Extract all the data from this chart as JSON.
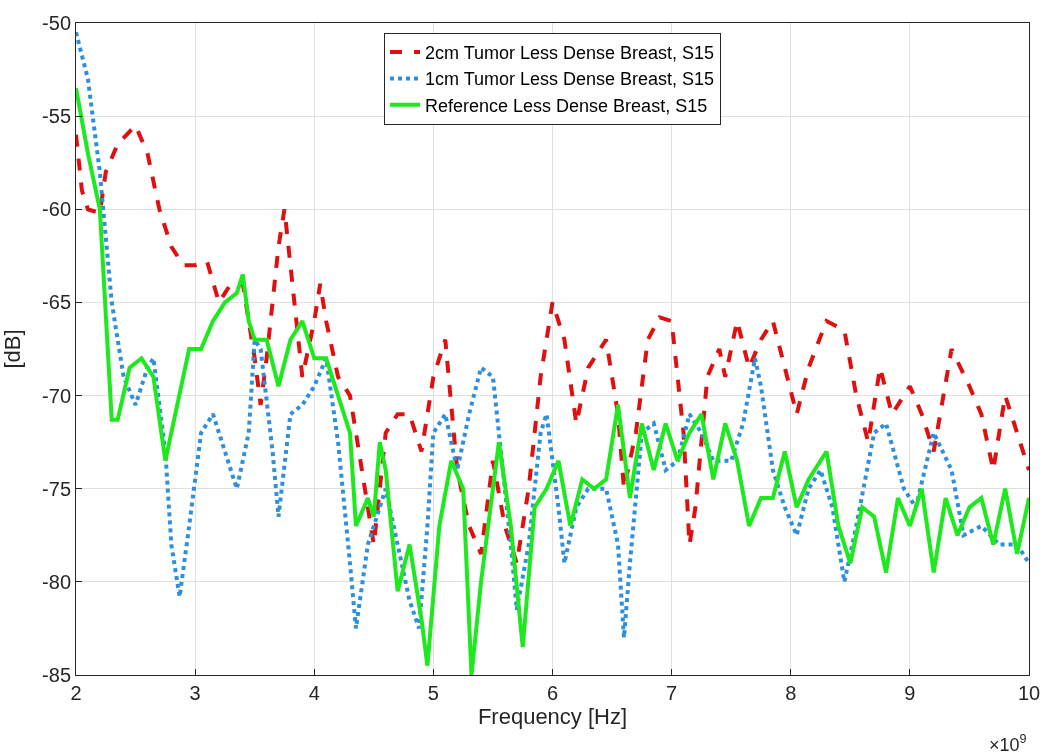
{
  "chart_data": {
    "type": "line",
    "xlabel": "Frequency [Hz]",
    "ylabel": "[dB]",
    "xlim": [
      2,
      10
    ],
    "xticks": [
      2,
      3,
      4,
      5,
      6,
      7,
      8,
      9,
      10
    ],
    "ylim": [
      -85,
      -50
    ],
    "yticks": [
      -85,
      -80,
      -75,
      -70,
      -65,
      -60,
      -55,
      -50
    ],
    "grid": true,
    "legend": "top",
    "marker": "none",
    "annotations": [
      "×10$^{9}$"
    ],
    "series": [
      {
        "name": "2cm Tumor Less Dense Breast, S15",
        "color": "#e01010",
        "line_style": "dashed",
        "x": [
          2.0,
          2.05,
          2.1,
          2.2,
          2.25,
          2.35,
          2.5,
          2.6,
          2.7,
          2.8,
          2.9,
          3.0,
          3.1,
          3.2,
          3.3,
          3.4,
          3.5,
          3.55,
          3.6,
          3.7,
          3.75,
          3.8,
          3.9,
          4.0,
          4.05,
          4.1,
          4.2,
          4.3,
          4.4,
          4.5,
          4.55,
          4.6,
          4.7,
          4.8,
          4.9,
          5.0,
          5.1,
          5.2,
          5.3,
          5.4,
          5.45,
          5.5,
          5.6,
          5.7,
          5.8,
          5.9,
          6.0,
          6.1,
          6.2,
          6.3,
          6.45,
          6.55,
          6.6,
          6.7,
          6.8,
          6.9,
          7.0,
          7.1,
          7.15,
          7.2,
          7.3,
          7.4,
          7.45,
          7.55,
          7.65,
          7.75,
          7.85,
          7.95,
          8.05,
          8.15,
          8.3,
          8.45,
          8.55,
          8.65,
          8.75,
          8.85,
          9.0,
          9.1,
          9.2,
          9.35,
          9.5,
          9.6,
          9.7,
          9.8,
          9.9,
          10.0
        ],
        "values": [
          -56,
          -59,
          -60,
          -60.2,
          -58,
          -56.5,
          -55.5,
          -57,
          -60,
          -62,
          -63,
          -63,
          -62.8,
          -65,
          -64,
          -64,
          -68,
          -70.5,
          -68,
          -62,
          -60,
          -63,
          -69,
          -66,
          -64,
          -66,
          -69,
          -70,
          -74,
          -78,
          -75,
          -72,
          -71,
          -71,
          -73,
          -69,
          -67,
          -74,
          -77,
          -78.5,
          -76,
          -73.5,
          -77,
          -79,
          -75,
          -69,
          -65,
          -67,
          -71.5,
          -68.5,
          -67,
          -71,
          -75,
          -72,
          -67,
          -65.8,
          -66,
          -72,
          -78,
          -76,
          -69,
          -67.5,
          -69,
          -66,
          -68.5,
          -67,
          -66,
          -68.5,
          -71,
          -68.5,
          -66,
          -66.5,
          -70,
          -72.5,
          -68.5,
          -71,
          -69.5,
          -71,
          -73,
          -67.5,
          -69.5,
          -71,
          -74,
          -70,
          -72,
          -74
        ]
      },
      {
        "name": "1cm Tumor Less Dense Breast, S15",
        "color": "#2e8fdc",
        "line_style": "dotted",
        "x": [
          2.0,
          2.1,
          2.2,
          2.3,
          2.4,
          2.5,
          2.6,
          2.65,
          2.75,
          2.8,
          2.87,
          2.95,
          3.05,
          3.15,
          3.25,
          3.35,
          3.45,
          3.5,
          3.55,
          3.65,
          3.7,
          3.8,
          3.9,
          4.0,
          4.1,
          4.2,
          4.3,
          4.35,
          4.45,
          4.55,
          4.6,
          4.7,
          4.8,
          4.88,
          4.95,
          5.0,
          5.1,
          5.2,
          5.3,
          5.4,
          5.5,
          5.55,
          5.65,
          5.7,
          5.8,
          5.9,
          5.95,
          6.05,
          6.1,
          6.2,
          6.3,
          6.45,
          6.55,
          6.6,
          6.65,
          6.75,
          6.85,
          6.95,
          7.05,
          7.15,
          7.25,
          7.35,
          7.5,
          7.6,
          7.7,
          7.75,
          7.85,
          7.95,
          8.05,
          8.15,
          8.25,
          8.35,
          8.45,
          8.55,
          8.7,
          8.8,
          8.95,
          9.05,
          9.2,
          9.35,
          9.45,
          9.6,
          9.75,
          9.9,
          10.0
        ],
        "values": [
          -50.5,
          -53,
          -58,
          -65,
          -69,
          -70.5,
          -68.5,
          -68,
          -73,
          -78,
          -80.8,
          -77,
          -72,
          -71,
          -73,
          -75,
          -72,
          -67,
          -67.5,
          -73,
          -76.5,
          -71,
          -70.5,
          -69.5,
          -68,
          -72.5,
          -79,
          -82.5,
          -78,
          -76,
          -75,
          -78,
          -81,
          -82.5,
          -77,
          -72,
          -71,
          -74,
          -71,
          -68.5,
          -69,
          -72,
          -78,
          -81.5,
          -78,
          -72,
          -71,
          -76,
          -79,
          -76,
          -75,
          -75,
          -78,
          -83,
          -79,
          -72,
          -71.5,
          -74,
          -73.5,
          -71,
          -72,
          -73.5,
          -73.5,
          -71.5,
          -68,
          -69.5,
          -74,
          -76,
          -77.5,
          -75,
          -74,
          -76,
          -80,
          -77,
          -72,
          -71.5,
          -75,
          -76,
          -72,
          -74,
          -77.5,
          -77,
          -78,
          -78,
          -79
        ]
      },
      {
        "name": "Reference Less Dense Breast, S15",
        "color": "#1ee81e",
        "line_style": "solid",
        "x": [
          2.0,
          2.1,
          2.2,
          2.3,
          2.35,
          2.45,
          2.55,
          2.65,
          2.75,
          2.9,
          2.95,
          3.05,
          3.15,
          3.25,
          3.35,
          3.4,
          3.45,
          3.5,
          3.6,
          3.7,
          3.8,
          3.9,
          4.0,
          4.1,
          4.2,
          4.3,
          4.35,
          4.45,
          4.5,
          4.55,
          4.6,
          4.7,
          4.8,
          4.9,
          4.95,
          5.05,
          5.15,
          5.25,
          5.32,
          5.4,
          5.55,
          5.65,
          5.75,
          5.85,
          5.95,
          6.05,
          6.15,
          6.25,
          6.35,
          6.45,
          6.55,
          6.65,
          6.75,
          6.85,
          6.95,
          7.05,
          7.15,
          7.25,
          7.35,
          7.45,
          7.55,
          7.65,
          7.75,
          7.85,
          7.95,
          8.05,
          8.15,
          8.3,
          8.4,
          8.5,
          8.6,
          8.7,
          8.8,
          8.9,
          9.0,
          9.1,
          9.2,
          9.3,
          9.4,
          9.5,
          9.6,
          9.7,
          9.8,
          9.9,
          10.0
        ],
        "values": [
          -53.5,
          -57,
          -60,
          -71.3,
          -71.3,
          -68.5,
          -68,
          -69,
          -73.5,
          -69,
          -67.5,
          -67.5,
          -66,
          -65,
          -64.5,
          -63.5,
          -66,
          -67,
          -67,
          -69.5,
          -67,
          -66,
          -68,
          -68,
          -70,
          -72,
          -77,
          -75.5,
          -76.5,
          -72.5,
          -74,
          -80.5,
          -78,
          -82,
          -84.5,
          -77,
          -73.5,
          -75,
          -85,
          -80,
          -72.5,
          -77,
          -83.5,
          -76,
          -75,
          -73.5,
          -77,
          -74.5,
          -75,
          -74.5,
          -70.5,
          -75.5,
          -71.5,
          -74,
          -71.5,
          -73.5,
          -72,
          -71,
          -74.5,
          -71.5,
          -73.5,
          -77,
          -75.5,
          -75.5,
          -73,
          -76,
          -74.5,
          -73,
          -77,
          -79,
          -76,
          -76.5,
          -79.5,
          -75.5,
          -77,
          -75,
          -79.5,
          -75.5,
          -77.5,
          -76,
          -75.5,
          -78,
          -75,
          -78.5,
          -75.5
        ]
      }
    ]
  }
}
